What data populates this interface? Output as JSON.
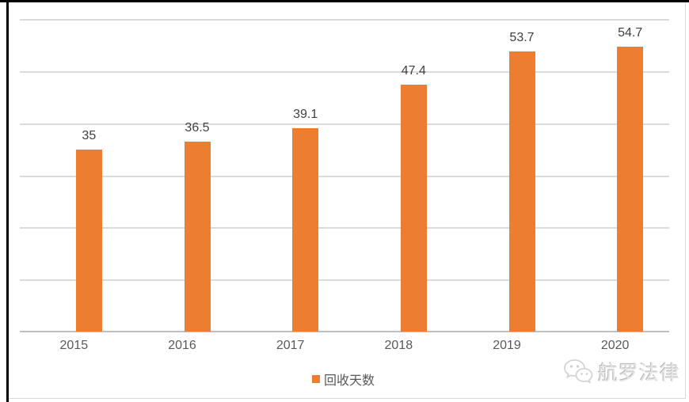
{
  "chart_data": {
    "type": "bar",
    "categories": [
      "2015",
      "2016",
      "2017",
      "2018",
      "2019",
      "2020"
    ],
    "series": [
      {
        "name": "回收天数",
        "values": [
          35,
          36.5,
          39.1,
          47.4,
          53.7,
          54.7
        ]
      }
    ],
    "data_labels": [
      "35",
      "36.5",
      "39.1",
      "47.4",
      "53.7",
      "54.7"
    ],
    "title": "",
    "xlabel": "",
    "ylabel": "",
    "ylim": [
      0,
      60
    ],
    "gridline_step": 10,
    "grid": true,
    "y_axis_labels_visible": false,
    "legend_position": "bottom",
    "bar_color": "#ED7D31",
    "gridline_color": "#DBDBDB",
    "axis_line_color": "#BFBFBF",
    "label_color": "#404040",
    "axis_text_color": "#595959"
  },
  "legend": {
    "label": "回收天数",
    "swatch_color": "#ED7D31"
  },
  "watermark": {
    "text": "航罗法律",
    "icon": "wechat-icon",
    "color": "#d9d9d9"
  }
}
